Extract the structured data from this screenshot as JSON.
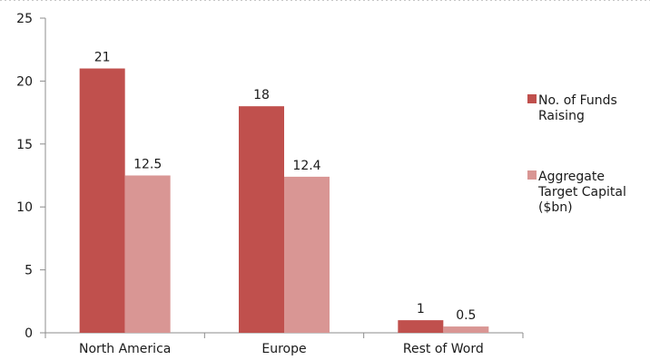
{
  "chart_data": {
    "type": "bar",
    "categories": [
      "North America",
      "Europe",
      "Rest of Word"
    ],
    "series": [
      {
        "name": "No. of Funds Raising",
        "values": [
          21,
          18,
          1
        ],
        "labels": [
          "21",
          "18",
          "1"
        ]
      },
      {
        "name": "Aggregate Target Capital ($bn)",
        "values": [
          12.5,
          12.4,
          0.5
        ],
        "labels": [
          "12.5",
          "12.4",
          "0.5"
        ]
      }
    ],
    "ylim": [
      0,
      25
    ],
    "yticks": [
      0,
      5,
      10,
      15,
      20,
      25
    ],
    "grid": false,
    "legend_placement": "right",
    "legend_lines": [
      [
        "No. of Funds",
        "Raising"
      ],
      [
        "Aggregate",
        "Target Capital",
        "($bn)"
      ]
    ],
    "colors": [
      "#c0504d",
      "#d99694"
    ],
    "axis_color": "#8c8c8c",
    "top_border_color": "#c8c8c8"
  }
}
